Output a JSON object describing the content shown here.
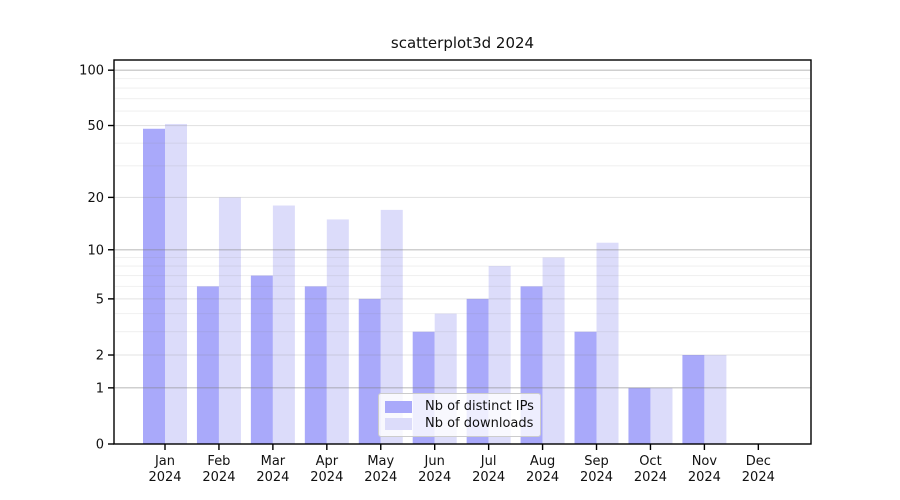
{
  "chart_data": {
    "type": "bar",
    "title": "scatterplot3d 2024",
    "categories": [
      "Jan 2024",
      "Feb 2024",
      "Mar 2024",
      "Apr 2024",
      "May 2024",
      "Jun 2024",
      "Jul 2024",
      "Aug 2024",
      "Sep 2024",
      "Oct 2024",
      "Nov 2024",
      "Dec 2024"
    ],
    "series": [
      {
        "name": "Nb of distinct IPs",
        "color": "#a9a9fa",
        "values": [
          48,
          6,
          7,
          6,
          5,
          3,
          5,
          6,
          3,
          1,
          2,
          0
        ]
      },
      {
        "name": "Nb of downloads",
        "color": "#dcdcfa",
        "values": [
          51,
          20,
          18,
          15,
          17,
          4,
          8,
          9,
          11,
          1,
          2,
          0
        ]
      }
    ],
    "y_axis": {
      "scale": "log1p",
      "tick_values": [
        0,
        1,
        2,
        5,
        10,
        20,
        50,
        100
      ],
      "tick_labels": [
        "0",
        "1",
        "2",
        "5",
        "10",
        "20",
        "50",
        "100"
      ],
      "range": [
        0,
        113
      ],
      "gridlines": {
        "major": [
          1,
          10,
          100
        ],
        "medium": [
          2,
          5,
          20,
          50
        ],
        "minor": [
          3,
          4,
          6,
          7,
          8,
          9,
          30,
          40,
          60,
          70,
          80,
          90
        ]
      }
    },
    "x_axis": {
      "label_line2": "2024"
    },
    "legend": {
      "position": "lower center"
    },
    "grid": true,
    "colors": {
      "axis": "#000000",
      "gridline_base": "#808080",
      "text": "#111111",
      "background": "#ffffff"
    }
  }
}
